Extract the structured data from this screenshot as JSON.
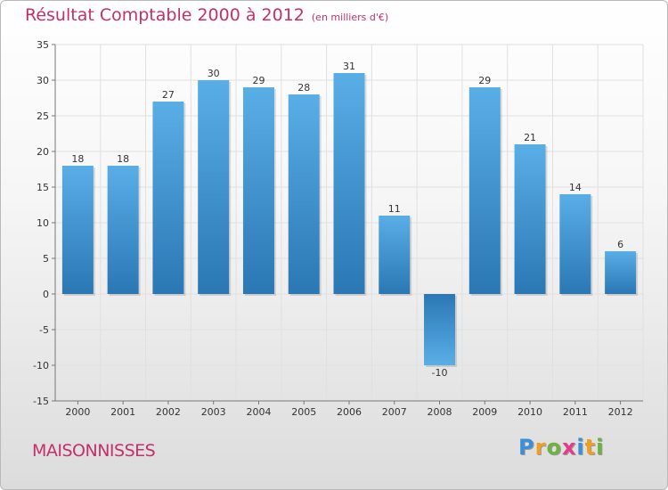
{
  "title": "Résultat Comptable 2000 à 2012",
  "unit": "(en milliers d'€)",
  "commune": "MAISONNISSES",
  "logo": {
    "text": "Proxiti",
    "letters": [
      "P",
      "r",
      "o",
      "x",
      "i",
      "t",
      "i"
    ],
    "colors": [
      "#3a8fd6",
      "#f0a020",
      "#6cb33f",
      "#e63a8a",
      "#3a8fd6",
      "#f0a020",
      "#6cb33f"
    ]
  },
  "colors": {
    "accent": "#c4306a",
    "bar_top": "#5aaee6",
    "bar_bottom": "#2a77b4",
    "grid": "#e0e0e0"
  },
  "chart_data": {
    "type": "bar",
    "title": "Résultat Comptable 2000 à 2012",
    "xlabel": "",
    "ylabel": "",
    "ylim": [
      -15,
      35
    ],
    "yticks": [
      -15,
      -10,
      -5,
      0,
      5,
      10,
      15,
      20,
      25,
      30,
      35
    ],
    "grid": true,
    "categories": [
      "2000",
      "2001",
      "2002",
      "2003",
      "2004",
      "2005",
      "2006",
      "2007",
      "2008",
      "2009",
      "2010",
      "2011",
      "2012"
    ],
    "values": [
      18,
      18,
      27,
      30,
      29,
      28,
      31,
      11,
      -10,
      29,
      21,
      14,
      6
    ],
    "value_labels": [
      "18",
      "18",
      "27",
      "30",
      "29",
      "28",
      "31",
      "11",
      "-10",
      "29",
      "21",
      "14",
      "6"
    ]
  }
}
